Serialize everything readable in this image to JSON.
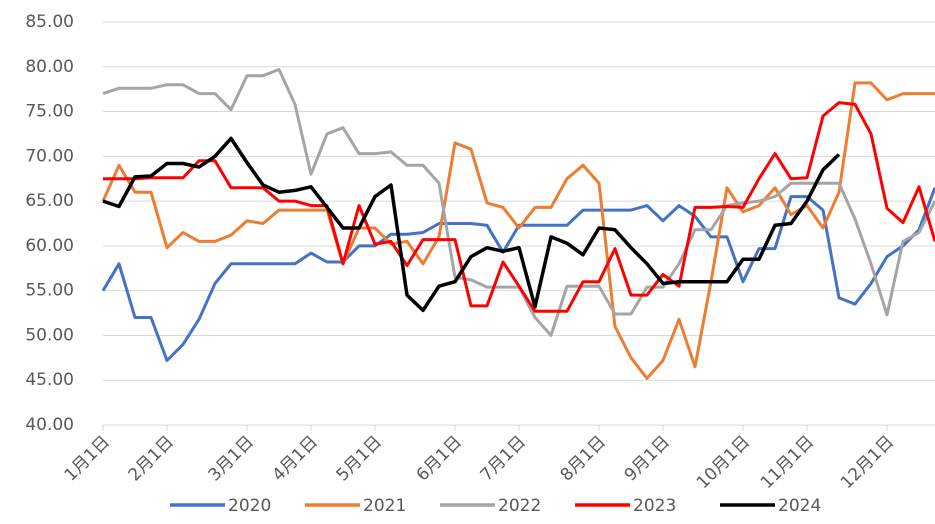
{
  "chart_data": {
    "type": "line",
    "categories": [
      "1月1日",
      null,
      null,
      null,
      "2月1日",
      null,
      null,
      null,
      null,
      "3月1日",
      null,
      null,
      null,
      "4月1日",
      null,
      null,
      null,
      "5月1日",
      null,
      null,
      null,
      null,
      "6月1日",
      null,
      null,
      null,
      "7月1日",
      null,
      null,
      null,
      null,
      "8月1日",
      null,
      null,
      null,
      "9月1日",
      null,
      null,
      null,
      null,
      "10月1日",
      null,
      null,
      null,
      "11月1日",
      null,
      null,
      null,
      null,
      "12月1日",
      null,
      null,
      null
    ],
    "series": [
      {
        "name": "2020",
        "color": "#4472c4",
        "values": [
          55,
          58,
          52,
          52,
          47.2,
          49,
          51.8,
          55.8,
          58,
          58,
          58,
          58,
          58,
          59.2,
          58.2,
          58.2,
          60,
          60,
          61.3,
          61.3,
          61.5,
          62.5,
          62.5,
          62.5,
          62.3,
          59.3,
          62.3,
          62.3,
          62.3,
          62.3,
          64,
          64,
          64,
          64,
          64.5,
          62.8,
          64.5,
          63.3,
          61,
          61,
          56,
          59.7,
          59.7,
          65.5,
          65.5,
          64,
          54.2,
          53.5,
          55.8,
          58.8,
          60,
          61.8,
          66.5
        ]
      },
      {
        "name": "2021",
        "color": "#ed7d31",
        "values": [
          65,
          69,
          66,
          66,
          59.8,
          61.5,
          60.5,
          60.5,
          61.2,
          62.8,
          62.5,
          64,
          64,
          64,
          64,
          58,
          62,
          62,
          60.2,
          60.5,
          58,
          61,
          71.5,
          70.8,
          64.8,
          64.3,
          62,
          64.3,
          64.3,
          67.5,
          69,
          67,
          51,
          47.5,
          45.2,
          47.2,
          51.8,
          46.5,
          56,
          66.5,
          63.8,
          64.5,
          66.5,
          63.5,
          64.5,
          62,
          66,
          78.2,
          78.2,
          76.3,
          77,
          77,
          77
        ]
      },
      {
        "name": "2022",
        "color": "#a5a5a5",
        "values": [
          77,
          77.6,
          77.6,
          77.6,
          78,
          78,
          77,
          77,
          75.2,
          79,
          79,
          79.7,
          75.8,
          68,
          72.5,
          73.2,
          70.3,
          70.3,
          70.5,
          69,
          69,
          67,
          56.5,
          56.2,
          55.4,
          55.4,
          55.4,
          52,
          50,
          55.5,
          55.5,
          55.5,
          52.4,
          52.4,
          55.4,
          55.4,
          58,
          61.8,
          61.8,
          64.5,
          64.8,
          65,
          65.5,
          67,
          67,
          67,
          67,
          63,
          58,
          52.3,
          60.5,
          61.5,
          65
        ]
      },
      {
        "name": "2023",
        "color": "#ff0000",
        "values": [
          67.5,
          67.5,
          67.5,
          67.6,
          67.6,
          67.6,
          69.5,
          69.5,
          66.5,
          66.5,
          66.5,
          65,
          65,
          64.5,
          64.5,
          58,
          64.5,
          60.2,
          60.5,
          57.8,
          60.7,
          60.7,
          60.7,
          53.3,
          53.3,
          58.2,
          55.5,
          52.7,
          52.7,
          52.7,
          56,
          56,
          59.7,
          54.5,
          54.5,
          56.8,
          55.5,
          64.3,
          64.3,
          64.4,
          64.3,
          67.5,
          70.3,
          67.5,
          67.6,
          74.5,
          76,
          75.8,
          72.5,
          64.2,
          62.6,
          66.6,
          60.5
        ]
      },
      {
        "name": "2024",
        "color": "#000000",
        "values": [
          65,
          64.4,
          67.7,
          67.8,
          69.2,
          69.2,
          68.8,
          70,
          72,
          69.3,
          66.8,
          66,
          66.2,
          66.6,
          64.3,
          62,
          62,
          65.5,
          66.8,
          54.5,
          52.8,
          55.5,
          56,
          58.8,
          59.8,
          59.4,
          59.8,
          53.2,
          61,
          60.3,
          59,
          62,
          61.8,
          59.8,
          58,
          55.8,
          56,
          56,
          56,
          56,
          58.5,
          58.5,
          62.3,
          62.5,
          65,
          68.5,
          70.2,
          null,
          null,
          null,
          null,
          null,
          null
        ]
      }
    ],
    "ylim": [
      40,
      85
    ],
    "yticks": [
      {
        "value": 40,
        "label": "40.00"
      },
      {
        "value": 45,
        "label": "45.00"
      },
      {
        "value": 50,
        "label": "50.00"
      },
      {
        "value": 55,
        "label": "55.00"
      },
      {
        "value": 60,
        "label": "60.00"
      },
      {
        "value": 65,
        "label": "65.00"
      },
      {
        "value": 70,
        "label": "70.00"
      },
      {
        "value": 75,
        "label": "75.00"
      },
      {
        "value": 80,
        "label": "80.00"
      },
      {
        "value": 85,
        "label": "85.00"
      }
    ],
    "grid": true
  }
}
